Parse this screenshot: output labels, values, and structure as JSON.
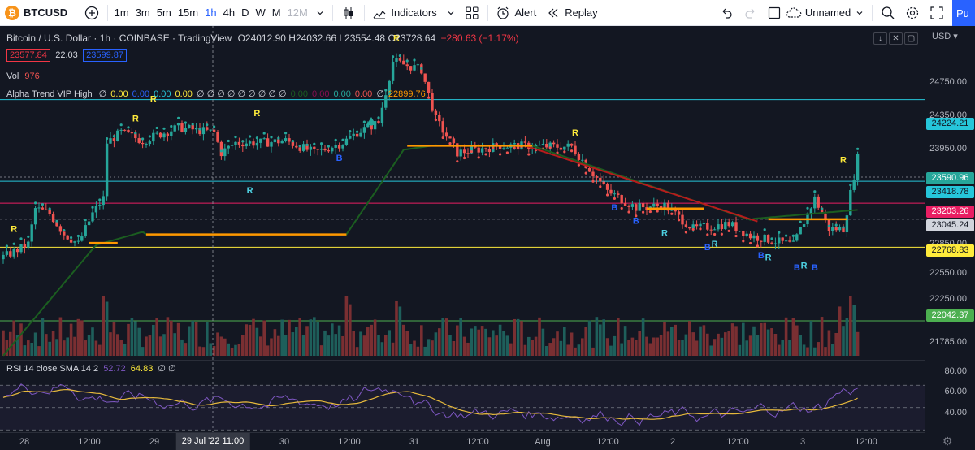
{
  "toolbar": {
    "symbol": "BTCUSD",
    "intervals": [
      "1m",
      "3m",
      "5m",
      "15m",
      "1h",
      "4h",
      "D",
      "W",
      "M",
      "12M"
    ],
    "active_interval": "1h",
    "indicators_label": "Indicators",
    "alert_label": "Alert",
    "replay_label": "Replay",
    "layout_name": "Unnamed",
    "publish_label": "Pu"
  },
  "legend": {
    "title": "Bitcoin / U.S. Dollar · 1h · COINBASE · TradingView",
    "open": "O24012.90",
    "high": "H24032.66",
    "low": "L23554.48",
    "close": "C23728.64",
    "change": "−280.63 (−1.17%)",
    "bid": "23577.84",
    "spread": "22.03",
    "ask": "23599.87"
  },
  "volume": {
    "label": "Vol",
    "value": "976"
  },
  "alpha_trend": {
    "label": "Alpha Trend VIP High",
    "values": [
      {
        "v": "∅",
        "c": "#d1d4dc"
      },
      {
        "v": "0.00",
        "c": "#ffeb3b"
      },
      {
        "v": "0.00",
        "c": "#2962ff"
      },
      {
        "v": "0.00",
        "c": "#26c6da"
      },
      {
        "v": "0.00",
        "c": "#ffeb3b"
      },
      {
        "v": "∅ ∅ ∅ ∅ ∅ ∅ ∅ ∅ ∅",
        "c": "#d1d4dc"
      },
      {
        "v": "0.00",
        "c": "#1b5e20"
      },
      {
        "v": "0.00",
        "c": "#880e4f"
      },
      {
        "v": "0.00",
        "c": "#26a69a"
      },
      {
        "v": "0.00",
        "c": "#ef5350"
      },
      {
        "v": "∅",
        "c": "#d1d4dc"
      },
      {
        "v": "22899.76",
        "c": "#ff9800"
      }
    ]
  },
  "rsi": {
    "label": "RSI 14 close SMA 14 2",
    "value": "52.72",
    "sma": "64.83",
    "extra": "∅ ∅"
  },
  "price_scale": {
    "currency": "USD",
    "labels": [
      "24750.00",
      "24350.00",
      "23950.00",
      "22850.00",
      "22550.00",
      "22250.00",
      "21785.00"
    ],
    "rsi_labels": [
      "80.00",
      "60.00",
      "40.00"
    ],
    "tags": [
      {
        "text": "24224.21",
        "bg": "#26c6da",
        "fg": "#131722"
      },
      {
        "text": "23590.96",
        "bg": "#26a69a",
        "fg": "#ffffff"
      },
      {
        "text": "23418.78",
        "bg": "#26c6da",
        "fg": "#131722"
      },
      {
        "text": "23203.26",
        "bg": "#e91e63",
        "fg": "#ffffff"
      },
      {
        "text": "23045.24",
        "bg": "#d1d4dc",
        "fg": "#131722"
      },
      {
        "text": "22768.83",
        "bg": "#ffeb3b",
        "fg": "#131722"
      },
      {
        "text": "22042.37",
        "bg": "#4caf50",
        "fg": "#ffffff"
      }
    ]
  },
  "time_axis": {
    "labels": [
      "28",
      "12:00",
      "29",
      "30",
      "12:00",
      "31",
      "12:00",
      "Aug",
      "12:00",
      "2",
      "12:00",
      "3",
      "12:00"
    ],
    "crosshair_label": "29 Jul '22   11:00"
  },
  "chart_data": {
    "type": "candlestick",
    "symbol": "BTCUSD",
    "interval": "1h",
    "price_range": [
      21650,
      24950
    ],
    "horizontal_levels": [
      24224.21,
      23418.78,
      23203.26,
      23045.24,
      22768.83,
      22042.37
    ],
    "rsi_range": [
      28,
      92
    ],
    "rsi_bands": [
      70,
      50,
      30
    ],
    "signal_markers": [
      {
        "t": "R",
        "at": 3,
        "price": 22920,
        "c": "#ffeb3b"
      },
      {
        "t": "R",
        "at": 37,
        "price": 24010,
        "c": "#ffeb3b"
      },
      {
        "t": "R",
        "at": 42,
        "price": 24200,
        "c": "#ffeb3b"
      },
      {
        "t": "R",
        "at": 71,
        "price": 24060,
        "c": "#ffeb3b"
      },
      {
        "t": "R",
        "at": 69,
        "price": 23300,
        "c": "#4dd0e1"
      },
      {
        "t": "B",
        "at": 94,
        "price": 23620,
        "c": "#2962ff"
      },
      {
        "t": "R",
        "at": 110,
        "price": 24800,
        "c": "#ffeb3b"
      },
      {
        "t": "R",
        "at": 160,
        "price": 23870,
        "c": "#ffeb3b"
      },
      {
        "t": "B",
        "at": 171,
        "price": 23130,
        "c": "#2962ff"
      },
      {
        "t": "B",
        "at": 177,
        "price": 23000,
        "c": "#2962ff"
      },
      {
        "t": "R",
        "at": 185,
        "price": 22880,
        "c": "#4dd0e1"
      },
      {
        "t": "B",
        "at": 197,
        "price": 22740,
        "c": "#2962ff"
      },
      {
        "t": "R",
        "at": 199,
        "price": 22770,
        "c": "#4dd0e1"
      },
      {
        "t": "B",
        "at": 212,
        "price": 22660,
        "c": "#2962ff"
      },
      {
        "t": "R",
        "at": 214,
        "price": 22640,
        "c": "#4dd0e1"
      },
      {
        "t": "B",
        "at": 222,
        "price": 22540,
        "c": "#2962ff"
      },
      {
        "t": "R",
        "at": 224,
        "price": 22560,
        "c": "#4dd0e1"
      },
      {
        "t": "B",
        "at": 227,
        "price": 22540,
        "c": "#2962ff"
      },
      {
        "t": "R",
        "at": 235,
        "price": 23600,
        "c": "#ffeb3b"
      }
    ]
  },
  "colors": {
    "up": "#26a69a",
    "down": "#ef5350",
    "vol_up": "#1e5f5b",
    "vol_down": "#7a2f32",
    "trend_green": "#1b5e20",
    "trend_red": "#b71c1c",
    "orange": "#ff9800",
    "rsi_line": "#7e57c2",
    "rsi_sma": "#e6b93c",
    "accent": "#2962ff"
  }
}
